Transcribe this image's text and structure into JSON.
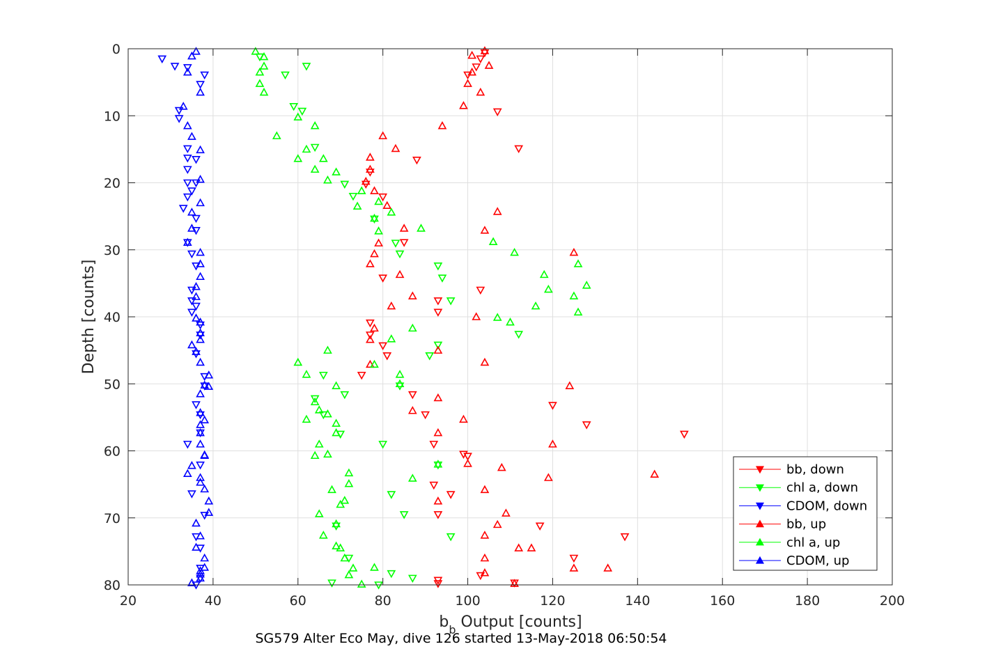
{
  "chart_data": {
    "type": "scatter",
    "xlabel_main": "b",
    "xlabel_sub": "b",
    "xlabel_rest": " Output [counts]",
    "ylabel": "Depth [counts]",
    "title": "SG579 Alter Eco May, dive 126 started 13-May-2018 06:50:54",
    "xlim": [
      20,
      200
    ],
    "ylim": [
      0,
      80
    ],
    "y_reversed": true,
    "grid": true,
    "legend_position": "bottom-right",
    "x_ticks": [
      "20",
      "40",
      "60",
      "80",
      "100",
      "120",
      "140",
      "160",
      "180",
      "200"
    ],
    "y_ticks": [
      "0",
      "10",
      "20",
      "30",
      "40",
      "50",
      "60",
      "70",
      "80"
    ],
    "series": [
      {
        "name": "bb, down",
        "color": "#ff0000",
        "marker": "triangle-down",
        "points": [
          [
            104,
            0.6
          ],
          [
            103,
            1.5
          ],
          [
            102,
            2.7
          ],
          [
            100,
            3.9
          ],
          [
            107,
            9.4
          ],
          [
            112,
            14.9
          ],
          [
            88,
            16.6
          ],
          [
            77,
            18.4
          ],
          [
            76,
            20.2
          ],
          [
            80,
            22.1
          ],
          [
            85,
            28.9
          ],
          [
            80,
            34.2
          ],
          [
            103,
            36.0
          ],
          [
            93,
            37.6
          ],
          [
            93,
            39.3
          ],
          [
            77,
            40.9
          ],
          [
            77,
            42.7
          ],
          [
            80,
            44.3
          ],
          [
            81,
            45.8
          ],
          [
            75,
            48.7
          ],
          [
            87,
            51.6
          ],
          [
            120,
            53.2
          ],
          [
            90,
            54.6
          ],
          [
            128,
            56.1
          ],
          [
            151,
            57.5
          ],
          [
            92,
            59.0
          ],
          [
            99,
            60.5
          ],
          [
            100,
            60.8
          ],
          [
            92,
            65.1
          ],
          [
            96,
            66.5
          ],
          [
            93,
            69.5
          ],
          [
            117,
            71.2
          ],
          [
            137,
            72.8
          ],
          [
            125,
            76.0
          ],
          [
            103,
            78.6
          ],
          [
            93,
            79.3
          ],
          [
            111,
            79.7
          ],
          [
            93,
            79.8
          ]
        ]
      },
      {
        "name": "chl a, down",
        "color": "#00ff00",
        "marker": "triangle-down",
        "points": [
          [
            51,
            1.2
          ],
          [
            62,
            2.6
          ],
          [
            57,
            3.9
          ],
          [
            59,
            8.6
          ],
          [
            61,
            9.3
          ],
          [
            64,
            14.7
          ],
          [
            71,
            20.2
          ],
          [
            73,
            22.0
          ],
          [
            78,
            25.4
          ],
          [
            83,
            29.0
          ],
          [
            84,
            30.6
          ],
          [
            93,
            32.4
          ],
          [
            94,
            34.2
          ],
          [
            96,
            37.6
          ],
          [
            112,
            42.6
          ],
          [
            93,
            44.2
          ],
          [
            91,
            45.8
          ],
          [
            66,
            48.7
          ],
          [
            84,
            50.3
          ],
          [
            71,
            51.6
          ],
          [
            64,
            52.2
          ],
          [
            66,
            54.6
          ],
          [
            70,
            57.5
          ],
          [
            80,
            59.0
          ],
          [
            93,
            62.1
          ],
          [
            82,
            66.5
          ],
          [
            85,
            69.5
          ],
          [
            69,
            71.2
          ],
          [
            96,
            72.8
          ],
          [
            72,
            76.0
          ],
          [
            82,
            78.3
          ],
          [
            87,
            79.0
          ],
          [
            68,
            79.7
          ],
          [
            79,
            80.0
          ]
        ]
      },
      {
        "name": "CDOM, down",
        "color": "#0000ff",
        "marker": "triangle-down",
        "points": [
          [
            28,
            1.5
          ],
          [
            31,
            2.6
          ],
          [
            38,
            3.9
          ],
          [
            34,
            2.8
          ],
          [
            37,
            5.3
          ],
          [
            32,
            9.2
          ],
          [
            32,
            10.4
          ],
          [
            34,
            14.9
          ],
          [
            34,
            16.3
          ],
          [
            36,
            16.5
          ],
          [
            34,
            18.0
          ],
          [
            34,
            20.0
          ],
          [
            36,
            20.0
          ],
          [
            35,
            21.2
          ],
          [
            33,
            23.8
          ],
          [
            34,
            22.1
          ],
          [
            36,
            25.3
          ],
          [
            36,
            27.1
          ],
          [
            34,
            28.9
          ],
          [
            35,
            30.6
          ],
          [
            36,
            32.4
          ],
          [
            35,
            36.0
          ],
          [
            35,
            37.6
          ],
          [
            36,
            38.4
          ],
          [
            35,
            39.3
          ],
          [
            37,
            41.2
          ],
          [
            37,
            42.7
          ],
          [
            36,
            45.5
          ],
          [
            38,
            48.9
          ],
          [
            38,
            50.3
          ],
          [
            36,
            53.1
          ],
          [
            37,
            54.6
          ],
          [
            37,
            57.3
          ],
          [
            34,
            59.0
          ],
          [
            37,
            62.1
          ],
          [
            35,
            66.4
          ],
          [
            38,
            69.6
          ],
          [
            36,
            72.8
          ],
          [
            37,
            74.5
          ],
          [
            37,
            77.5
          ],
          [
            37,
            79.0
          ],
          [
            36,
            80.0
          ]
        ]
      },
      {
        "name": "bb, up",
        "color": "#ff0000",
        "marker": "triangle-up",
        "points": [
          [
            104,
            0.3
          ],
          [
            101,
            1.0
          ],
          [
            105,
            2.5
          ],
          [
            101,
            3.5
          ],
          [
            100,
            5.2
          ],
          [
            103,
            6.5
          ],
          [
            99,
            8.5
          ],
          [
            94,
            11.5
          ],
          [
            80,
            13.0
          ],
          [
            83,
            14.9
          ],
          [
            77,
            16.2
          ],
          [
            77,
            18.0
          ],
          [
            76,
            19.8
          ],
          [
            78,
            21.2
          ],
          [
            81,
            23.4
          ],
          [
            107,
            24.3
          ],
          [
            85,
            26.8
          ],
          [
            104,
            27.1
          ],
          [
            79,
            29.0
          ],
          [
            78,
            30.6
          ],
          [
            125,
            30.4
          ],
          [
            77,
            32.1
          ],
          [
            84,
            33.7
          ],
          [
            87,
            36.9
          ],
          [
            82,
            38.4
          ],
          [
            102,
            40.0
          ],
          [
            78,
            41.7
          ],
          [
            77,
            43.4
          ],
          [
            93,
            45.0
          ],
          [
            104,
            46.8
          ],
          [
            77,
            47.1
          ],
          [
            124,
            50.3
          ],
          [
            93,
            52.1
          ],
          [
            87,
            54.0
          ],
          [
            99,
            55.3
          ],
          [
            93,
            57.3
          ],
          [
            120,
            59.0
          ],
          [
            100,
            61.9
          ],
          [
            108,
            62.5
          ],
          [
            144,
            63.5
          ],
          [
            119,
            64.0
          ],
          [
            104,
            65.8
          ],
          [
            93,
            67.5
          ],
          [
            109,
            69.3
          ],
          [
            107,
            71.0
          ],
          [
            104,
            72.6
          ],
          [
            112,
            74.5
          ],
          [
            115,
            74.5
          ],
          [
            104,
            76.0
          ],
          [
            125,
            77.5
          ],
          [
            133,
            77.5
          ],
          [
            104,
            78.2
          ],
          [
            111,
            79.8
          ]
        ]
      },
      {
        "name": "chl a, up",
        "color": "#00ff00",
        "marker": "triangle-up",
        "points": [
          [
            50,
            0.4
          ],
          [
            52,
            1.2
          ],
          [
            52,
            2.6
          ],
          [
            51,
            3.5
          ],
          [
            51,
            5.2
          ],
          [
            52,
            6.5
          ],
          [
            60,
            10.2
          ],
          [
            64,
            11.5
          ],
          [
            55,
            13.0
          ],
          [
            62,
            15.0
          ],
          [
            66,
            16.4
          ],
          [
            60,
            16.4
          ],
          [
            64,
            18.0
          ],
          [
            69,
            18.4
          ],
          [
            67,
            19.6
          ],
          [
            75,
            21.2
          ],
          [
            74,
            23.5
          ],
          [
            79,
            22.8
          ],
          [
            82,
            24.4
          ],
          [
            78,
            25.3
          ],
          [
            79,
            27.2
          ],
          [
            89,
            26.8
          ],
          [
            106,
            28.8
          ],
          [
            111,
            30.4
          ],
          [
            126,
            32.1
          ],
          [
            118,
            33.7
          ],
          [
            128,
            35.3
          ],
          [
            119,
            35.9
          ],
          [
            125,
            36.9
          ],
          [
            126,
            39.3
          ],
          [
            116,
            38.4
          ],
          [
            107,
            40.1
          ],
          [
            110,
            40.8
          ],
          [
            87,
            41.7
          ],
          [
            82,
            43.3
          ],
          [
            67,
            45.0
          ],
          [
            60,
            46.8
          ],
          [
            62,
            48.6
          ],
          [
            78,
            47.1
          ],
          [
            84,
            48.6
          ],
          [
            69,
            50.3
          ],
          [
            84,
            50.0
          ],
          [
            64,
            52.7
          ],
          [
            65,
            53.9
          ],
          [
            67,
            54.5
          ],
          [
            62,
            55.3
          ],
          [
            69,
            55.9
          ],
          [
            69,
            57.3
          ],
          [
            65,
            59.0
          ],
          [
            64,
            60.7
          ],
          [
            67,
            60.5
          ],
          [
            72,
            63.3
          ],
          [
            72,
            64.9
          ],
          [
            93,
            62.0
          ],
          [
            87,
            64.1
          ],
          [
            68,
            65.8
          ],
          [
            71,
            67.4
          ],
          [
            70,
            68.0
          ],
          [
            65,
            69.4
          ],
          [
            69,
            70.9
          ],
          [
            66,
            72.6
          ],
          [
            69,
            74.2
          ],
          [
            70,
            74.5
          ],
          [
            71,
            76.0
          ],
          [
            72,
            78.5
          ],
          [
            73,
            77.5
          ],
          [
            78,
            77.4
          ],
          [
            75,
            79.9
          ]
        ]
      },
      {
        "name": "CDOM, up",
        "color": "#0000ff",
        "marker": "triangle-up",
        "points": [
          [
            36,
            0.4
          ],
          [
            35,
            1.1
          ],
          [
            34,
            3.5
          ],
          [
            37,
            6.5
          ],
          [
            33,
            8.6
          ],
          [
            34,
            11.5
          ],
          [
            35,
            13.1
          ],
          [
            37,
            15.1
          ],
          [
            37,
            19.5
          ],
          [
            37,
            23.0
          ],
          [
            35,
            24.4
          ],
          [
            35,
            26.8
          ],
          [
            34,
            28.9
          ],
          [
            37,
            30.4
          ],
          [
            37,
            32.1
          ],
          [
            37,
            34.0
          ],
          [
            36,
            35.5
          ],
          [
            36,
            37.0
          ],
          [
            36,
            40.2
          ],
          [
            37,
            40.8
          ],
          [
            37,
            42.4
          ],
          [
            37,
            43.4
          ],
          [
            35,
            44.2
          ],
          [
            36,
            45.2
          ],
          [
            37,
            46.8
          ],
          [
            38,
            50.2
          ],
          [
            39,
            48.7
          ],
          [
            39,
            50.4
          ],
          [
            37,
            51.5
          ],
          [
            37,
            54.3
          ],
          [
            38,
            55.4
          ],
          [
            37,
            56.1
          ],
          [
            37,
            57.3
          ],
          [
            37,
            59.0
          ],
          [
            38,
            60.6
          ],
          [
            38,
            60.7
          ],
          [
            35,
            62.2
          ],
          [
            34,
            63.4
          ],
          [
            37,
            64.0
          ],
          [
            37,
            64.7
          ],
          [
            38,
            65.7
          ],
          [
            39,
            67.5
          ],
          [
            39,
            69.2
          ],
          [
            36,
            70.8
          ],
          [
            37,
            72.7
          ],
          [
            36,
            74.4
          ],
          [
            38,
            76.0
          ],
          [
            38,
            77.4
          ],
          [
            37,
            77.9
          ],
          [
            37,
            78.4
          ],
          [
            37,
            79.0
          ],
          [
            35,
            79.7
          ]
        ]
      }
    ]
  }
}
